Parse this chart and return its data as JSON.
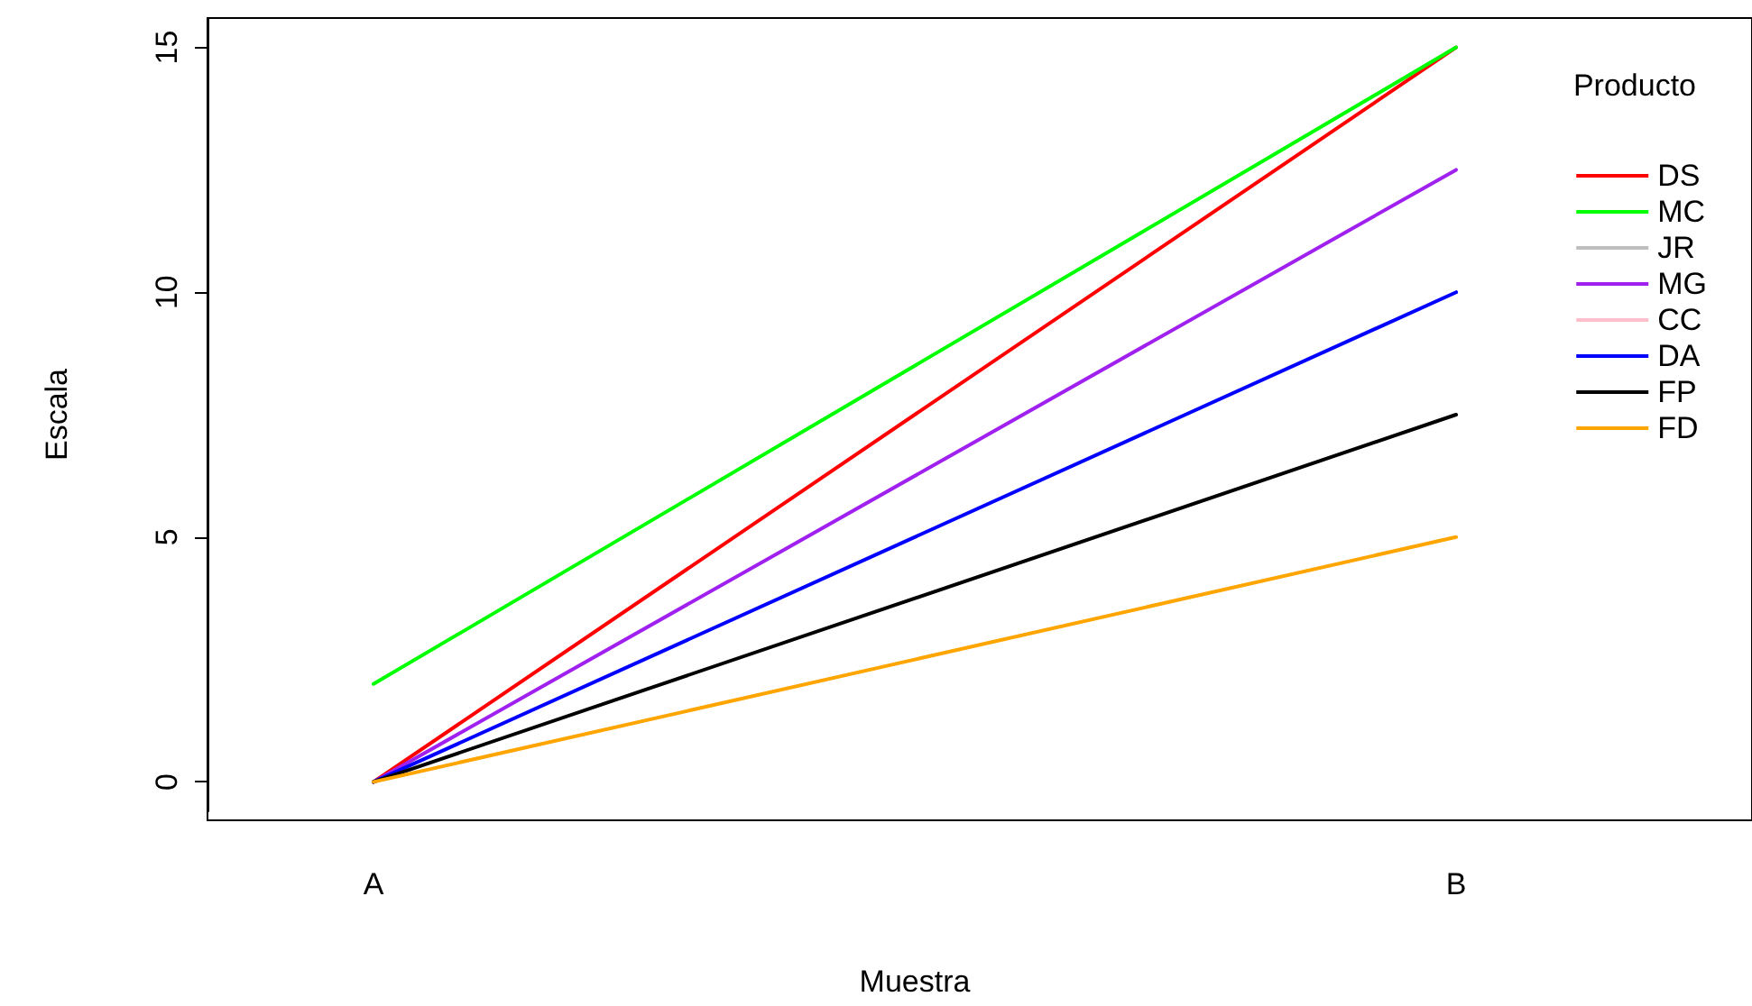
{
  "chart_data": {
    "type": "line",
    "xlabel": "Muestra",
    "ylabel": "Escala",
    "legend_title": "Producto",
    "categories": [
      "A",
      "B"
    ],
    "series": [
      {
        "name": "DS",
        "color": "#ff0000",
        "values": [
          0,
          15
        ]
      },
      {
        "name": "MC",
        "color": "#00ff00",
        "values": [
          2,
          15
        ]
      },
      {
        "name": "JR",
        "color": "#bebebe",
        "values": [
          null,
          null
        ]
      },
      {
        "name": "MG",
        "color": "#a020f0",
        "values": [
          0,
          12.5
        ]
      },
      {
        "name": "CC",
        "color": "#ffc0cb",
        "values": [
          null,
          null
        ]
      },
      {
        "name": "DA",
        "color": "#0000ff",
        "values": [
          0,
          10
        ]
      },
      {
        "name": "FP",
        "color": "#000000",
        "values": [
          0,
          7.5
        ]
      },
      {
        "name": "FD",
        "color": "#ffa500",
        "values": [
          0,
          5
        ]
      }
    ],
    "ylim": [
      -0.6,
      15.6
    ],
    "yticks": [
      0,
      5,
      10,
      15
    ],
    "grid": false,
    "legend": "top right",
    "marker": "none",
    "line_style": "solid"
  }
}
